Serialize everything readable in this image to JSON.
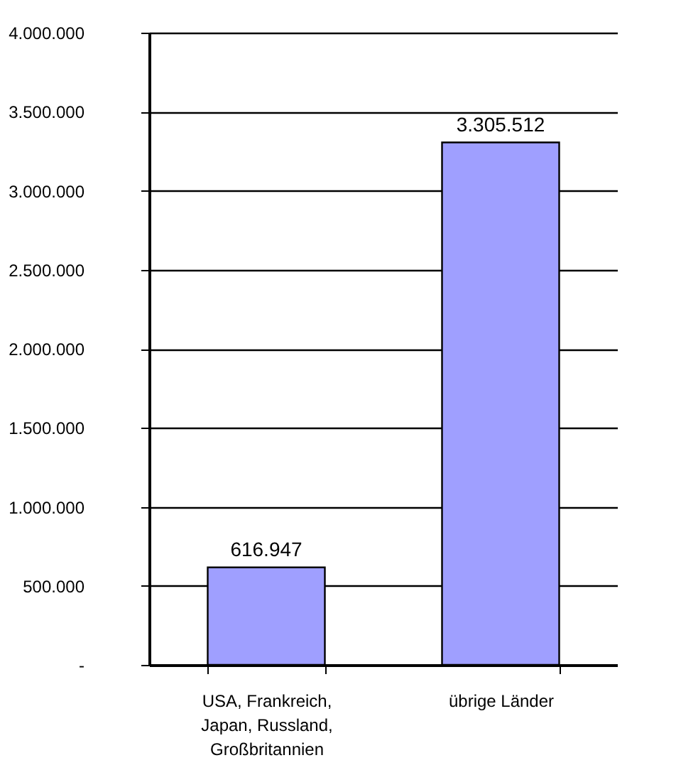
{
  "chart_data": {
    "type": "bar",
    "categories": [
      "USA, Frankreich, Japan, Russland, Großbritannien",
      "übrige Länder"
    ],
    "values": [
      616947,
      3305512
    ],
    "value_labels": [
      "616.947",
      "3.305.512"
    ],
    "color": "#9f9fff",
    "ylim": [
      0,
      4000000
    ],
    "yticks": [
      {
        "value": 0,
        "label": "-"
      },
      {
        "value": 500000,
        "label": "500.000"
      },
      {
        "value": 1000000,
        "label": "1.000.000"
      },
      {
        "value": 1500000,
        "label": "1.500.000"
      },
      {
        "value": 2000000,
        "label": "2.000.000"
      },
      {
        "value": 2500000,
        "label": "2.500.000"
      },
      {
        "value": 3000000,
        "label": "3.000.000"
      },
      {
        "value": 3500000,
        "label": "3.500.000"
      },
      {
        "value": 4000000,
        "label": "4.000.000"
      }
    ],
    "grid": "y"
  }
}
